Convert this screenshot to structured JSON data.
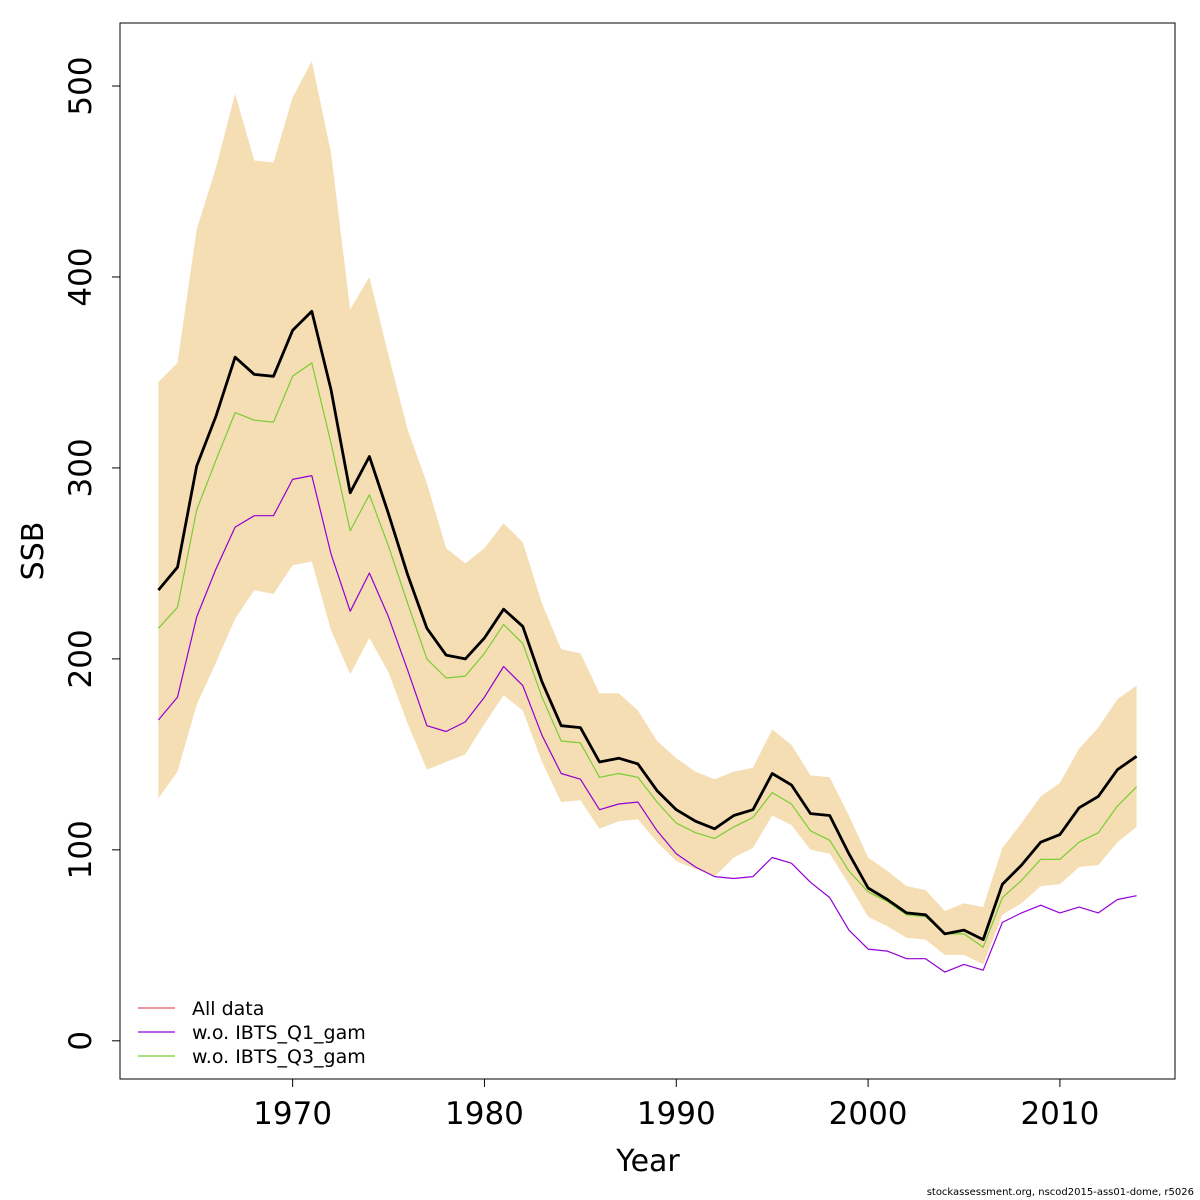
{
  "chart_data": {
    "type": "line",
    "title": "",
    "xlabel": "Year",
    "ylabel": "SSB",
    "xlim": [
      1961,
      2016
    ],
    "ylim": [
      -20,
      533
    ],
    "xticks": [
      1970,
      1980,
      1990,
      2000,
      2010
    ],
    "yticks": [
      0,
      100,
      200,
      300,
      400,
      500
    ],
    "grid": false,
    "legend_position": "bottom-left",
    "x": [
      1963,
      1964,
      1965,
      1966,
      1967,
      1968,
      1969,
      1970,
      1971,
      1972,
      1973,
      1974,
      1975,
      1976,
      1977,
      1978,
      1979,
      1980,
      1981,
      1982,
      1983,
      1984,
      1985,
      1986,
      1987,
      1988,
      1989,
      1990,
      1991,
      1992,
      1993,
      1994,
      1995,
      1996,
      1997,
      1998,
      1999,
      2000,
      2001,
      2002,
      2003,
      2004,
      2005,
      2006,
      2007,
      2008,
      2009,
      2010,
      2011,
      2012,
      2013,
      2014
    ],
    "band": {
      "color": "#F5DEB3",
      "upper": [
        345,
        355,
        425,
        457,
        496,
        461,
        460,
        494,
        513,
        465,
        383,
        400,
        359,
        320,
        292,
        258,
        250,
        258,
        271,
        261,
        229,
        205,
        203,
        182,
        182,
        173,
        157,
        148,
        141,
        137,
        141,
        143,
        163,
        155,
        139,
        138,
        118,
        96,
        89,
        81,
        79,
        68,
        72,
        70,
        101,
        114,
        128,
        135,
        153,
        164,
        179,
        186
      ],
      "lower": [
        127,
        141,
        176,
        198,
        221,
        236,
        234,
        249,
        251,
        215,
        192,
        211,
        193,
        166,
        142,
        146,
        150,
        166,
        181,
        173,
        146,
        125,
        126,
        111,
        115,
        116,
        104,
        94,
        90,
        86,
        96,
        101,
        118,
        113,
        100,
        98,
        82,
        65,
        60,
        54,
        53,
        45,
        45,
        40,
        66,
        72,
        81,
        82,
        91,
        92,
        104,
        112
      ]
    },
    "series": [
      {
        "name": "All data",
        "color": "#000000",
        "legend_color": "#DF536B",
        "width": 2.8,
        "values": [
          236,
          248,
          301,
          327,
          358,
          349,
          348,
          372,
          382,
          341,
          287,
          306,
          276,
          244,
          216,
          202,
          200,
          211,
          226,
          217,
          188,
          165,
          164,
          146,
          148,
          145,
          131,
          121,
          115,
          111,
          118,
          121,
          140,
          134,
          119,
          118,
          98,
          80,
          74,
          67,
          66,
          56,
          58,
          53,
          82,
          92,
          104,
          108,
          122,
          128,
          142,
          149
        ]
      },
      {
        "name": "w.o. IBTS_Q1_gam",
        "color": "#9400D3",
        "legend_color": "#9400D3",
        "width": 1.2,
        "values": [
          168,
          180,
          222,
          247,
          269,
          275,
          275,
          294,
          296,
          255,
          225,
          245,
          222,
          194,
          165,
          162,
          167,
          180,
          196,
          186,
          160,
          140,
          137,
          121,
          124,
          125,
          110,
          98,
          91,
          86,
          85,
          86,
          96,
          93,
          83,
          75,
          58,
          48,
          47,
          43,
          43,
          36,
          40,
          37,
          62,
          67,
          71,
          67,
          70,
          67,
          74,
          76
        ]
      },
      {
        "name": "w.o. IBTS_Q3_gam",
        "color": "#7ACD32",
        "legend_color": "#7ACD32",
        "width": 1.2,
        "values": [
          216,
          227,
          278,
          304,
          329,
          325,
          324,
          348,
          355,
          313,
          267,
          286,
          259,
          229,
          200,
          190,
          191,
          203,
          218,
          208,
          180,
          157,
          156,
          138,
          140,
          138,
          125,
          114,
          109,
          106,
          112,
          117,
          130,
          124,
          110,
          105,
          89,
          78,
          73,
          66,
          65,
          56,
          56,
          49,
          75,
          84,
          95,
          95,
          104,
          109,
          123,
          133
        ]
      }
    ]
  },
  "footer_text": "stockassessment.org, nscod2015-ass01-dome, r5026"
}
